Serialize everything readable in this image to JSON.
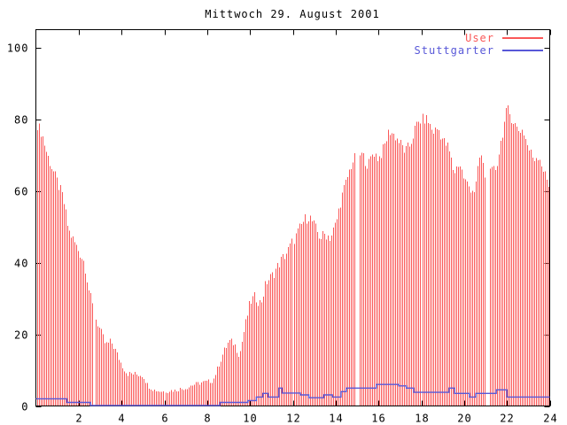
{
  "chart_data": {
    "type": "mixed",
    "title": "Mittwoch 29. August 2001",
    "xlabel": "",
    "ylabel": "",
    "xlim": [
      0,
      24
    ],
    "ylim": [
      0,
      105
    ],
    "xticks": [
      2,
      4,
      6,
      8,
      10,
      12,
      14,
      16,
      18,
      20,
      22,
      24
    ],
    "yticks": [
      0,
      20,
      40,
      60,
      80,
      100
    ],
    "grid": false,
    "legend_position": "top-right",
    "gaps_hours": [
      2.7,
      14.97,
      21.05
    ],
    "series": [
      {
        "name": "User",
        "type": "impulses",
        "color": "#fa5858",
        "x_start_hours": 0,
        "sample_interval_hours": 0.25,
        "values": [
          79,
          76,
          70,
          66,
          62,
          58,
          49,
          46,
          43,
          40,
          31,
          25,
          21,
          17,
          18,
          15,
          11.5,
          9,
          9,
          8.8,
          8.5,
          5.6,
          4.5,
          4.2,
          4,
          4.3,
          4.4,
          4.8,
          5,
          5.8,
          6.2,
          6.5,
          6.8,
          7,
          11,
          15,
          18,
          17.5,
          14,
          22,
          29,
          30.5,
          28.5,
          34.5,
          36,
          38.5,
          41,
          43,
          46,
          49,
          52,
          53,
          50,
          47,
          48,
          47,
          51,
          58,
          63,
          68,
          70,
          70,
          67,
          71,
          69,
          72,
          77,
          75.5,
          73.5,
          71,
          73,
          78,
          80,
          80,
          76.5,
          77.5,
          74,
          72,
          65,
          68,
          63,
          61,
          60,
          71,
          63,
          65,
          66.5,
          75,
          83,
          80,
          77,
          77,
          72,
          69,
          70,
          65,
          61
        ]
      },
      {
        "name": "Stuttgarter",
        "type": "step_line",
        "color": "#5858d8",
        "points_hour_value": [
          [
            0,
            2
          ],
          [
            1.45,
            1
          ],
          [
            2.55,
            0.15
          ],
          [
            8.6,
            1
          ],
          [
            9.9,
            1.5
          ],
          [
            10.3,
            2.5
          ],
          [
            10.6,
            3.5
          ],
          [
            10.85,
            2.5
          ],
          [
            11.35,
            5
          ],
          [
            11.5,
            3.6
          ],
          [
            12.35,
            3.1
          ],
          [
            12.75,
            2.3
          ],
          [
            13.45,
            3.1
          ],
          [
            13.85,
            2.5
          ],
          [
            14.25,
            4
          ],
          [
            14.5,
            5
          ],
          [
            15.9,
            6
          ],
          [
            16.95,
            5.6
          ],
          [
            17.3,
            5
          ],
          [
            17.65,
            3.8
          ],
          [
            19.3,
            5
          ],
          [
            19.55,
            3.5
          ],
          [
            20.25,
            2.5
          ],
          [
            20.55,
            3.5
          ],
          [
            21.5,
            4.5
          ],
          [
            22.0,
            2.5
          ],
          [
            24,
            2.5
          ]
        ]
      }
    ]
  },
  "colors": {
    "axis": "#000000",
    "background": "#ffffff",
    "user": "#fa5858",
    "stuttgarter": "#5858d8"
  }
}
